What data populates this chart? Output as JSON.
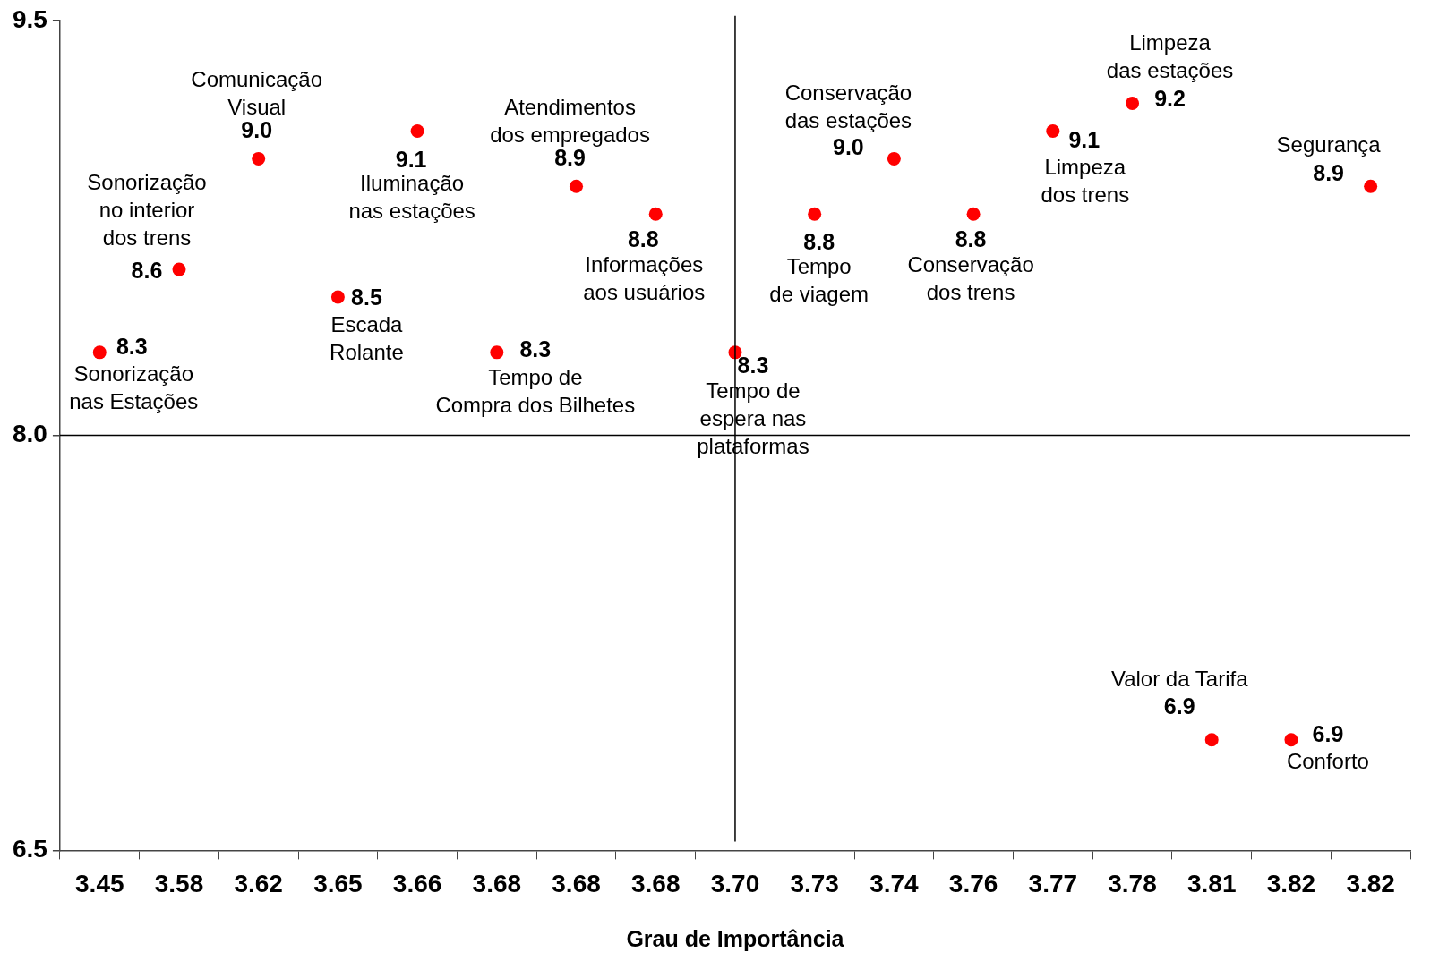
{
  "chart_data": {
    "type": "scatter",
    "xlabel": "Grau de Importância",
    "categories": [
      "3.45",
      "3.58",
      "3.62",
      "3.65",
      "3.66",
      "3.68",
      "3.68",
      "3.68",
      "3.70",
      "3.73",
      "3.74",
      "3.76",
      "3.77",
      "3.78",
      "3.81",
      "3.82",
      "3.82"
    ],
    "series": [
      {
        "name": "Sonorização\nnas Estações",
        "color": "#ff0000",
        "values": [
          8.3,
          null,
          null,
          null,
          null,
          null,
          null,
          null,
          null,
          null,
          null,
          null,
          null,
          null,
          null,
          null,
          null
        ]
      },
      {
        "name": "Sonorização\nno interior\ndos trens",
        "color": "#ff0000",
        "values": [
          null,
          8.6,
          null,
          null,
          null,
          null,
          null,
          null,
          null,
          null,
          null,
          null,
          null,
          null,
          null,
          null,
          null
        ]
      },
      {
        "name": "Comunicação\nVisual",
        "color": "#ff0000",
        "values": [
          null,
          null,
          9.0,
          null,
          null,
          null,
          null,
          null,
          null,
          null,
          null,
          null,
          null,
          null,
          null,
          null,
          null
        ],
        "value_labels": [
          null,
          null,
          "9.0",
          null,
          null,
          null,
          null,
          null,
          null,
          null,
          null,
          null,
          null,
          null,
          null,
          null,
          null
        ]
      },
      {
        "name": "Escada\nRolante",
        "color": "#ff0000",
        "values": [
          null,
          null,
          null,
          8.5,
          null,
          null,
          null,
          null,
          null,
          null,
          null,
          null,
          null,
          null,
          null,
          null,
          null
        ]
      },
      {
        "name": "Iluminação\nnas estações",
        "color": "#ff0000",
        "values": [
          null,
          null,
          null,
          null,
          9.1,
          null,
          null,
          null,
          null,
          null,
          null,
          null,
          null,
          null,
          null,
          null,
          null
        ]
      },
      {
        "name": "Tempo de\nCompra dos Bilhetes",
        "color": "#ff0000",
        "values": [
          null,
          null,
          null,
          null,
          null,
          8.3,
          null,
          null,
          null,
          null,
          null,
          null,
          null,
          null,
          null,
          null,
          null
        ]
      },
      {
        "name": "Atendimentos\ndos empregados",
        "color": "#ff0000",
        "values": [
          null,
          null,
          null,
          null,
          null,
          null,
          8.9,
          null,
          null,
          null,
          null,
          null,
          null,
          null,
          null,
          null,
          null
        ]
      },
      {
        "name": "Informações\naos usuários",
        "color": "#ff0000",
        "values": [
          null,
          null,
          null,
          null,
          null,
          null,
          null,
          8.8,
          null,
          null,
          null,
          null,
          null,
          null,
          null,
          null,
          null
        ]
      },
      {
        "name": "Tempo de\nespera nas\nplataformas",
        "color": "#ff0000",
        "values": [
          null,
          null,
          null,
          null,
          null,
          null,
          null,
          null,
          8.3,
          null,
          null,
          null,
          null,
          null,
          null,
          null,
          null
        ]
      },
      {
        "name": "Tempo\nde viagem",
        "color": "#ff0000",
        "values": [
          null,
          null,
          null,
          null,
          null,
          null,
          null,
          null,
          null,
          8.8,
          null,
          null,
          null,
          null,
          null,
          null,
          null
        ]
      },
      {
        "name": "Conservação\ndas estações",
        "color": "#ff0000",
        "values": [
          null,
          null,
          null,
          null,
          null,
          null,
          null,
          null,
          null,
          null,
          9.0,
          null,
          null,
          null,
          null,
          null,
          null
        ],
        "value_labels": [
          null,
          null,
          null,
          null,
          null,
          null,
          null,
          null,
          null,
          null,
          "9.0",
          null,
          null,
          null,
          null,
          null,
          null
        ]
      },
      {
        "name": "Conservação\ndos trens",
        "color": "#ff0000",
        "values": [
          null,
          null,
          null,
          null,
          null,
          null,
          null,
          null,
          null,
          null,
          null,
          8.8,
          null,
          null,
          null,
          null,
          null
        ]
      },
      {
        "name": "Limpeza\ndos trens",
        "color": "#ff0000",
        "values": [
          null,
          null,
          null,
          null,
          null,
          null,
          null,
          null,
          null,
          null,
          null,
          null,
          9.1,
          null,
          null,
          null,
          null
        ]
      },
      {
        "name": "Limpeza\ndas estações",
        "color": "#ff0000",
        "values": [
          null,
          null,
          null,
          null,
          null,
          null,
          null,
          null,
          null,
          null,
          null,
          null,
          null,
          9.2,
          null,
          null,
          null
        ]
      },
      {
        "name": "Valor da Tarifa",
        "color": "#ff0000",
        "values": [
          null,
          null,
          null,
          null,
          null,
          null,
          null,
          null,
          null,
          null,
          null,
          null,
          null,
          null,
          6.9,
          null,
          null
        ]
      },
      {
        "name": "Conforto",
        "color": "#ff0000",
        "values": [
          null,
          null,
          null,
          null,
          null,
          null,
          null,
          null,
          null,
          null,
          null,
          null,
          null,
          null,
          null,
          6.9,
          null
        ]
      },
      {
        "name": "Segurança",
        "color": "#ff0000",
        "values": [
          null,
          null,
          null,
          null,
          null,
          null,
          null,
          null,
          null,
          null,
          null,
          null,
          null,
          null,
          null,
          null,
          8.9
        ]
      }
    ],
    "ylim": [
      6.5,
      9.5
    ],
    "yticks": [
      6.5,
      {
        "value": 8,
        "label": "8.0"
      },
      9.5
    ],
    "marker": "circle",
    "legend": false,
    "data_labels": true,
    "ref_lines": [
      {
        "axis": "x",
        "value": "3.70"
      },
      {
        "axis": "y",
        "value": 8
      }
    ]
  }
}
